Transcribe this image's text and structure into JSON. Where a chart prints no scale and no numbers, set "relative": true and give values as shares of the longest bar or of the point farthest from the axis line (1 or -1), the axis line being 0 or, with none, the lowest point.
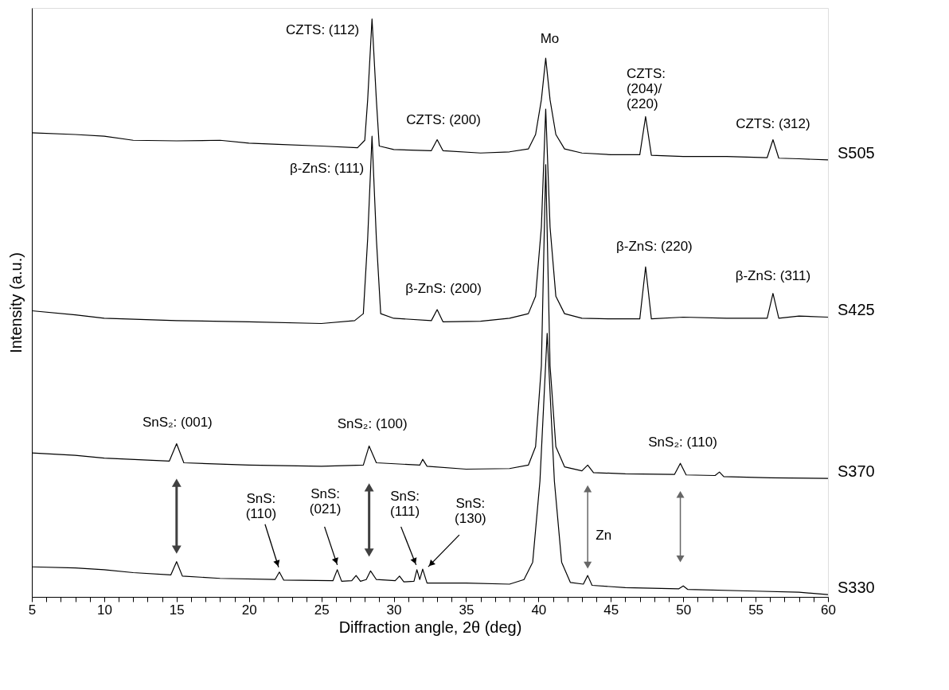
{
  "chart_data": {
    "type": "line",
    "relative": true,
    "xlabel": "Diffraction angle, 2θ (deg)",
    "ylabel": "Intensity (a.u.)",
    "xlim": [
      5,
      60
    ],
    "xticks": [
      5,
      {
        "value": 6,
        "label": null
      },
      {
        "value": 7,
        "label": null
      },
      {
        "value": 8,
        "label": null
      },
      {
        "value": 9,
        "label": null
      },
      10,
      {
        "value": 11,
        "label": null
      },
      {
        "value": 12,
        "label": null
      },
      {
        "value": 13,
        "label": null
      },
      {
        "value": 14,
        "label": null
      },
      15,
      {
        "value": 16,
        "label": null
      },
      {
        "value": 17,
        "label": null
      },
      {
        "value": 18,
        "label": null
      },
      {
        "value": 19,
        "label": null
      },
      20,
      {
        "value": 21,
        "label": null
      },
      {
        "value": 22,
        "label": null
      },
      {
        "value": 23,
        "label": null
      },
      {
        "value": 24,
        "label": null
      },
      25,
      {
        "value": 26,
        "label": null
      },
      {
        "value": 27,
        "label": null
      },
      {
        "value": 28,
        "label": null
      },
      {
        "value": 29,
        "label": null
      },
      30,
      {
        "value": 31,
        "label": null
      },
      {
        "value": 32,
        "label": null
      },
      {
        "value": 33,
        "label": null
      },
      {
        "value": 34,
        "label": null
      },
      35,
      {
        "value": 36,
        "label": null
      },
      {
        "value": 37,
        "label": null
      },
      {
        "value": 38,
        "label": null
      },
      {
        "value": 39,
        "label": null
      },
      40,
      {
        "value": 41,
        "label": null
      },
      {
        "value": 42,
        "label": null
      },
      {
        "value": 43,
        "label": null
      },
      {
        "value": 44,
        "label": null
      },
      45,
      {
        "value": 46,
        "label": null
      },
      {
        "value": 47,
        "label": null
      },
      {
        "value": 48,
        "label": null
      },
      {
        "value": 49,
        "label": null
      },
      50,
      {
        "value": 51,
        "label": null
      },
      {
        "value": 52,
        "label": null
      },
      {
        "value": 53,
        "label": null
      },
      {
        "value": 54,
        "label": null
      },
      55,
      {
        "value": 56,
        "label": null
      },
      {
        "value": 57,
        "label": null
      },
      {
        "value": 58,
        "label": null
      },
      {
        "value": 59,
        "label": null
      },
      60
    ],
    "grid": false,
    "line_style": "solid",
    "marker": "none",
    "series": [
      {
        "name": "S505",
        "color": "#000000",
        "x": [
          5,
          8,
          10,
          12,
          15,
          18,
          20,
          22,
          25,
          27.5,
          28.0,
          28.2,
          28.5,
          28.8,
          29.0,
          30,
          32.6,
          33.0,
          33.4,
          36,
          38,
          39.3,
          39.8,
          40.2,
          40.5,
          40.8,
          41.2,
          41.8,
          43,
          45,
          47.0,
          47.4,
          47.8,
          50,
          53,
          55.8,
          56.2,
          56.6,
          58,
          60
        ],
        "values": [
          0.803,
          0.8,
          0.797,
          0.79,
          0.789,
          0.79,
          0.785,
          0.783,
          0.78,
          0.777,
          0.79,
          0.86,
          1.0,
          0.86,
          0.78,
          0.774,
          0.772,
          0.791,
          0.772,
          0.768,
          0.77,
          0.775,
          0.8,
          0.86,
          0.932,
          0.86,
          0.8,
          0.775,
          0.768,
          0.765,
          0.765,
          0.831,
          0.764,
          0.762,
          0.762,
          0.76,
          0.791,
          0.759,
          0.758,
          0.756
        ]
      },
      {
        "name": "S425",
        "color": "#000000",
        "x": [
          5,
          8,
          10,
          15,
          20,
          25,
          27.3,
          27.9,
          28.2,
          28.5,
          28.8,
          29.1,
          30,
          32.6,
          33.0,
          33.4,
          36,
          38,
          39.3,
          39.8,
          40.2,
          40.5,
          40.8,
          41.2,
          41.8,
          43,
          45,
          47.0,
          47.4,
          47.8,
          50,
          53,
          55.8,
          56.2,
          56.6,
          58,
          60
        ],
        "values": [
          0.495,
          0.488,
          0.482,
          0.478,
          0.476,
          0.473,
          0.478,
          0.49,
          0.62,
          0.797,
          0.62,
          0.49,
          0.482,
          0.478,
          0.497,
          0.476,
          0.477,
          0.482,
          0.49,
          0.52,
          0.64,
          0.844,
          0.64,
          0.52,
          0.49,
          0.482,
          0.481,
          0.481,
          0.571,
          0.481,
          0.484,
          0.482,
          0.482,
          0.525,
          0.482,
          0.486,
          0.484
        ]
      },
      {
        "name": "S370",
        "color": "#000000",
        "x": [
          5,
          8,
          10,
          14.5,
          15.0,
          15.5,
          20,
          25,
          27.9,
          28.3,
          28.8,
          31.8,
          32.0,
          32.3,
          35,
          38,
          39.3,
          39.8,
          40.2,
          40.5,
          40.8,
          41.2,
          41.8,
          43.0,
          43.4,
          43.8,
          46,
          49.4,
          49.8,
          50.2,
          52.2,
          52.5,
          52.8,
          56,
          60
        ],
        "values": [
          0.249,
          0.245,
          0.24,
          0.235,
          0.265,
          0.232,
          0.228,
          0.226,
          0.228,
          0.261,
          0.232,
          0.228,
          0.238,
          0.226,
          0.221,
          0.222,
          0.228,
          0.26,
          0.4,
          0.748,
          0.4,
          0.26,
          0.225,
          0.218,
          0.228,
          0.215,
          0.213,
          0.212,
          0.231,
          0.211,
          0.21,
          0.216,
          0.208,
          0.206,
          0.205
        ]
      },
      {
        "name": "S330",
        "color": "#000000",
        "x": [
          5,
          8,
          10,
          12,
          14.6,
          15.0,
          15.4,
          18,
          21.8,
          22.1,
          22.4,
          25.8,
          26.1,
          26.4,
          27.1,
          27.4,
          27.7,
          28.1,
          28.4,
          28.8,
          30.1,
          30.4,
          30.7,
          31.4,
          31.6,
          31.8,
          32.0,
          32.3,
          35,
          38,
          39.0,
          39.6,
          40.1,
          40.6,
          41.1,
          41.6,
          42.2,
          43.1,
          43.4,
          43.7,
          46,
          49.7,
          50.0,
          50.3,
          55,
          58,
          60
        ],
        "values": [
          0.052,
          0.05,
          0.047,
          0.042,
          0.038,
          0.061,
          0.036,
          0.032,
          0.03,
          0.043,
          0.029,
          0.028,
          0.047,
          0.027,
          0.028,
          0.037,
          0.027,
          0.03,
          0.045,
          0.03,
          0.028,
          0.036,
          0.026,
          0.027,
          0.047,
          0.03,
          0.048,
          0.024,
          0.024,
          0.022,
          0.03,
          0.06,
          0.2,
          0.456,
          0.2,
          0.06,
          0.025,
          0.022,
          0.037,
          0.02,
          0.016,
          0.014,
          0.019,
          0.013,
          0.01,
          0.008,
          0.004
        ]
      }
    ],
    "annotations": [
      {
        "text": "CZTS: (112)",
        "x": 28.5,
        "y": 1.0
      },
      {
        "text": "CZTS: (200)",
        "x": 33.0,
        "y": 0.791
      },
      {
        "text": "Mo",
        "x": 40.5,
        "y": 0.932
      },
      {
        "text": "CZTS:\n(204)/\n(220)",
        "x": 47.4,
        "y": 0.831
      },
      {
        "text": "CZTS: (312)",
        "x": 56.2,
        "y": 0.791
      },
      {
        "text": "β-ZnS: (111)",
        "x": 28.5,
        "y": 0.797
      },
      {
        "text": "β-ZnS: (200)",
        "x": 33.0,
        "y": 0.497
      },
      {
        "text": "β-ZnS: (220)",
        "x": 47.4,
        "y": 0.571
      },
      {
        "text": "β-ZnS: (311)",
        "x": 56.2,
        "y": 0.525
      },
      {
        "text": "SnS₂: (001)",
        "x": 15.0,
        "y": 0.265
      },
      {
        "text": "SnS₂: (100)",
        "x": 28.3,
        "y": 0.261
      },
      {
        "text": "SnS₂: (110)",
        "x": 49.8,
        "y": 0.231
      },
      {
        "text": "SnS:\n(110)",
        "x": 22.1,
        "y": 0.043
      },
      {
        "text": "SnS:\n(021)",
        "x": 26.1,
        "y": 0.047
      },
      {
        "text": "SnS:\n(111)",
        "x": 31.6,
        "y": 0.047
      },
      {
        "text": "SnS:\n(130)",
        "x": 32.0,
        "y": 0.048
      },
      {
        "text": "Zn",
        "x": 43.4,
        "y": 0.037
      }
    ]
  }
}
